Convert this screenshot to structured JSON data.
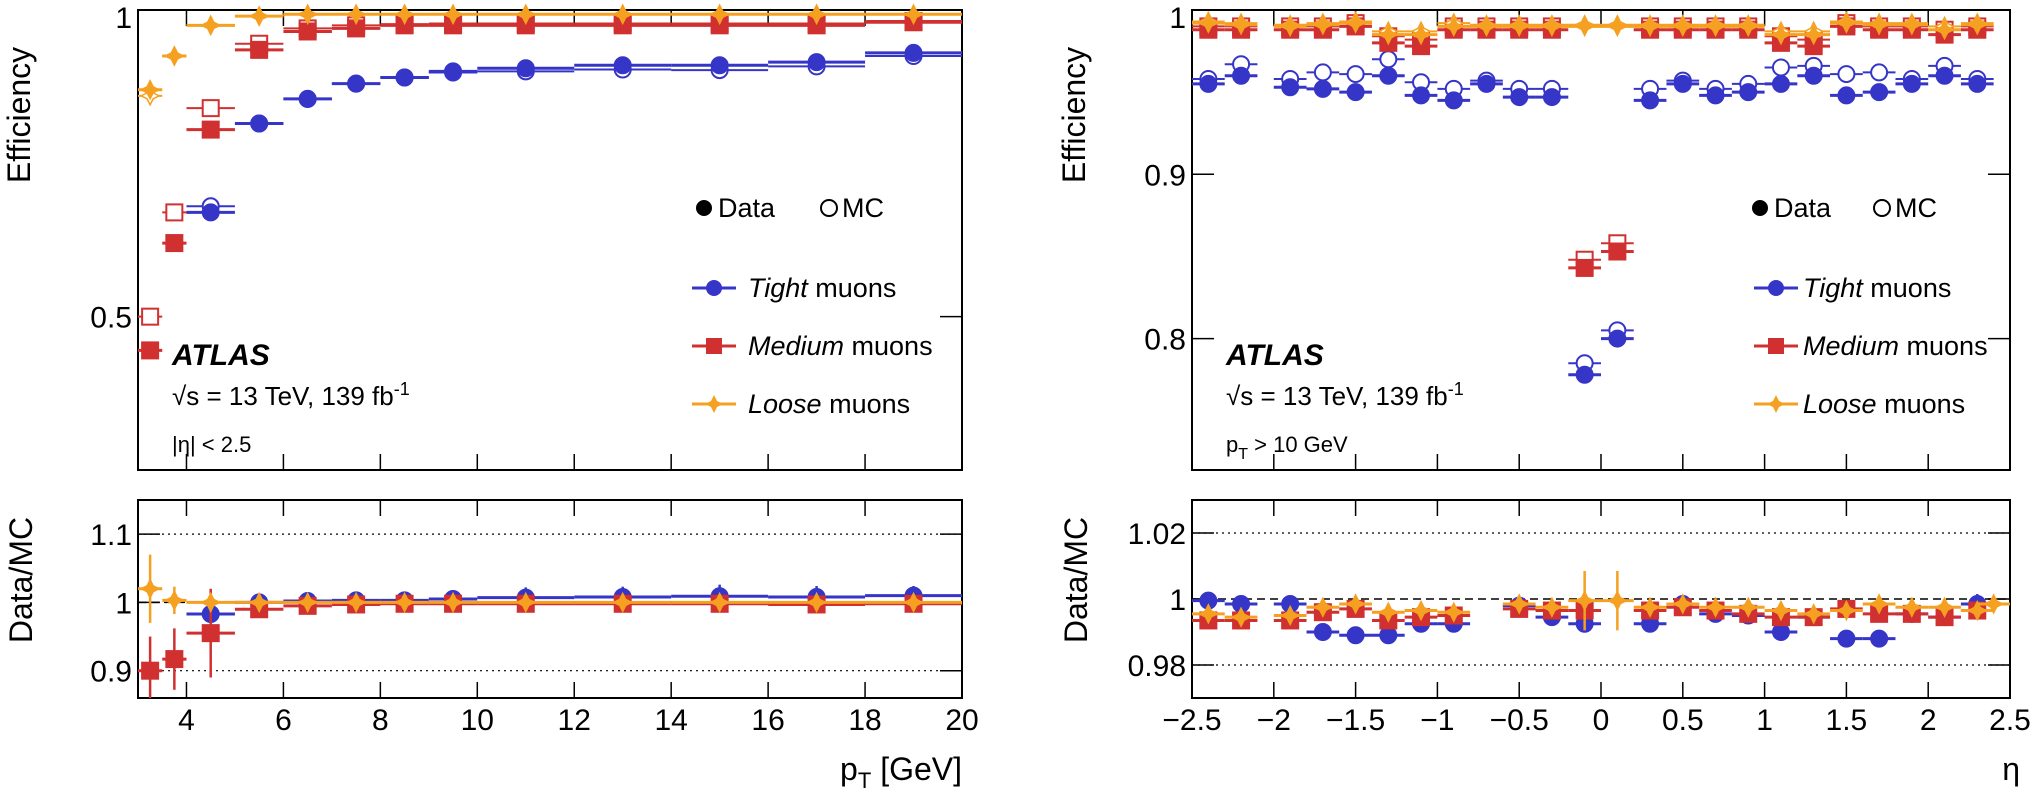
{
  "figure": {
    "experiment": "ATLAS",
    "energy_text": "s = 13 TeV, 139 fb",
    "lumi_sup": "-1",
    "sqrt_symbol": "√"
  },
  "legend": {
    "data_label": "Data",
    "mc_label": "MC",
    "tight_italic": "Tight",
    "medium_italic": "Medium",
    "loose_italic": "Loose",
    "muons_suffix": " muons"
  },
  "colors": {
    "tight": "#3535c8",
    "medium": "#d03030",
    "loose": "#f5a020",
    "data_marker": "#000000"
  },
  "chart_data": [
    {
      "id": "left",
      "type": "scatter",
      "xlabel": "p",
      "xlabel_sub": "T",
      "xlabel_unit": " [GeV]",
      "ylabel": "Efficiency",
      "ratio_ylabel": "Data/MC",
      "cut_label": "|η| < 2.5",
      "xlim": [
        3,
        20
      ],
      "ylim": [
        0.25,
        1.0
      ],
      "ratio_ylim": [
        0.86,
        1.15
      ],
      "xticks": [
        4,
        6,
        8,
        10,
        12,
        14,
        16,
        18,
        20
      ],
      "xtick_labels": [
        "4",
        "6",
        "8",
        "10",
        "12",
        "14",
        "16",
        "18",
        "20"
      ],
      "yticks": [
        0.5,
        1.0
      ],
      "ytick_labels": [
        "0.5",
        "1"
      ],
      "ratio_yticks": [
        0.9,
        1.0,
        1.1
      ],
      "ratio_ytick_labels": [
        "0.9",
        "1",
        "1.1"
      ],
      "ratio_gridlines": [
        0.9,
        1.1
      ],
      "ratio_dashed": 1.0,
      "series": [
        {
          "name": "Tight",
          "x": [
            4.5,
            5.5,
            6.5,
            7.5,
            8.5,
            9.5,
            11,
            13,
            15,
            17,
            19
          ],
          "xerr": [
            0.5,
            0.5,
            0.5,
            0.5,
            0.5,
            0.5,
            1,
            1,
            1,
            1,
            1
          ],
          "data": [
            0.67,
            0.815,
            0.855,
            0.88,
            0.89,
            0.9,
            0.905,
            0.91,
            0.91,
            0.915,
            0.93
          ],
          "mc": [
            0.68,
            0.815,
            0.855,
            0.88,
            0.89,
            0.898,
            0.9,
            0.903,
            0.902,
            0.908,
            0.925
          ],
          "ratio": [
            0.983,
            1.0,
            1.002,
            1.003,
            1.003,
            1.005,
            1.007,
            1.008,
            1.009,
            1.008,
            1.01
          ],
          "ratio_err": [
            0.01,
            0.004,
            0.008,
            0.009,
            0.01,
            0.012,
            0.015,
            0.015,
            0.017,
            0.016,
            0.014
          ]
        },
        {
          "name": "Medium",
          "x": [
            3.25,
            3.75,
            4.5,
            5.5,
            6.5,
            7.5,
            8.5,
            9.5,
            11,
            13,
            15,
            17,
            19
          ],
          "xerr": [
            0.25,
            0.25,
            0.5,
            0.5,
            0.5,
            0.5,
            0.5,
            0.5,
            1,
            1,
            1,
            1,
            1
          ],
          "data": [
            0.445,
            0.62,
            0.805,
            0.935,
            0.965,
            0.97,
            0.975,
            0.975,
            0.975,
            0.975,
            0.975,
            0.975,
            0.98
          ],
          "mc": [
            0.5,
            0.67,
            0.84,
            0.945,
            0.97,
            0.975,
            0.977,
            0.978,
            0.978,
            0.978,
            0.978,
            0.978,
            0.982
          ],
          "ratio": [
            0.9,
            0.917,
            0.955,
            0.99,
            0.995,
            0.997,
            0.998,
            0.998,
            0.998,
            0.998,
            0.998,
            0.997,
            0.998
          ],
          "ratio_err": [
            0.05,
            0.045,
            0.065,
            0.01,
            0.006,
            0.005,
            0.005,
            0.005,
            0.004,
            0.004,
            0.004,
            0.004,
            0.004
          ]
        },
        {
          "name": "Loose",
          "x": [
            3.25,
            3.75,
            4.5,
            5.5,
            6.5,
            7.5,
            8.5,
            9.5,
            11,
            13,
            15,
            17,
            19
          ],
          "xerr": [
            0.25,
            0.25,
            0.5,
            0.5,
            0.5,
            0.5,
            0.5,
            0.5,
            1,
            1,
            1,
            1,
            1
          ],
          "data": [
            0.87,
            0.925,
            0.975,
            0.99,
            0.993,
            0.993,
            0.993,
            0.993,
            0.993,
            0.993,
            0.993,
            0.993,
            0.993
          ],
          "mc": [
            0.86,
            0.925,
            0.975,
            0.99,
            0.993,
            0.993,
            0.993,
            0.993,
            0.993,
            0.993,
            0.993,
            0.993,
            0.993
          ],
          "ratio": [
            1.02,
            1.003,
            1.0,
            1.0,
            1.0,
            1.0,
            1.0,
            1.0,
            1.0,
            1.0,
            1.0,
            1.0,
            1.0
          ],
          "ratio_err": [
            0.05,
            0.02,
            0.01,
            0.004,
            0.003,
            0.003,
            0.003,
            0.003,
            0.003,
            0.003,
            0.003,
            0.003,
            0.003
          ]
        }
      ]
    },
    {
      "id": "right",
      "type": "scatter",
      "xlabel": "η",
      "ylabel": "Efficiency",
      "ratio_ylabel": "Data/MC",
      "cut_label": "p",
      "cut_label_sub": "T",
      "cut_label_rest": " > 10 GeV",
      "xlim": [
        -2.5,
        2.5
      ],
      "ylim": [
        0.72,
        1.0
      ],
      "ratio_ylim": [
        0.97,
        1.03
      ],
      "xticks": [
        -2.5,
        -2,
        -1.5,
        -1,
        -0.5,
        0,
        0.5,
        1,
        1.5,
        2,
        2.5
      ],
      "xtick_labels": [
        "−2.5",
        "−2",
        "−1.5",
        "−1",
        "−0.5",
        "0",
        "0.5",
        "1",
        "1.5",
        "2",
        "2.5"
      ],
      "yticks": [
        0.8,
        0.9,
        1.0
      ],
      "ytick_labels": [
        "0.8",
        "0.9",
        "1"
      ],
      "ratio_yticks": [
        0.98,
        1.0,
        1.02
      ],
      "ratio_ytick_labels": [
        "0.98",
        "1",
        "1.02"
      ],
      "ratio_gridlines": [
        0.98,
        1.02
      ],
      "ratio_dashed": 1.0,
      "series": [
        {
          "name": "Tight",
          "x": [
            -2.4,
            -2.2,
            -1.9,
            -1.7,
            -1.5,
            -1.3,
            -1.1,
            -0.9,
            -0.7,
            -0.5,
            -0.3,
            0.3,
            0.5,
            0.7,
            0.9,
            1.1,
            1.3,
            1.5,
            1.7,
            1.9,
            2.1,
            2.3,
            -0.1,
            0.1
          ],
          "xerr": [
            0.1,
            0.1,
            0.1,
            0.1,
            0.1,
            0.1,
            0.1,
            0.1,
            0.1,
            0.1,
            0.1,
            0.1,
            0.1,
            0.1,
            0.1,
            0.1,
            0.1,
            0.1,
            0.1,
            0.1,
            0.1,
            0.1,
            0.1,
            0.1
          ],
          "data": [
            0.955,
            0.96,
            0.953,
            0.952,
            0.95,
            0.96,
            0.948,
            0.945,
            0.955,
            0.947,
            0.947,
            0.945,
            0.955,
            0.948,
            0.95,
            0.955,
            0.96,
            0.948,
            0.95,
            0.955,
            0.96,
            0.955,
            0.778,
            0.8
          ],
          "mc": [
            0.958,
            0.967,
            0.958,
            0.962,
            0.961,
            0.97,
            0.956,
            0.952,
            0.957,
            0.952,
            0.952,
            0.952,
            0.957,
            0.952,
            0.955,
            0.965,
            0.966,
            0.961,
            0.962,
            0.958,
            0.966,
            0.958,
            0.785,
            0.805
          ],
          "ratio": [
            0.9995,
            0.9985,
            0.9985,
            0.99,
            0.989,
            0.989,
            0.9925,
            0.9925,
            0.998,
            0.9945,
            0.9925,
            0.9925,
            0.9985,
            0.9955,
            0.995,
            0.99,
            0.9945,
            0.988,
            0.988,
            0.9955,
            0.9945,
            0.9985
          ],
          "ratio_x": [
            -2.4,
            -2.2,
            -1.9,
            -1.7,
            -1.5,
            -1.3,
            -1.1,
            -0.9,
            -0.5,
            -0.3,
            -0.1,
            0.3,
            0.5,
            0.7,
            0.9,
            1.1,
            1.3,
            1.5,
            1.7,
            1.9,
            2.1,
            2.3
          ],
          "ratio_err": [
            0.002,
            0.002,
            0.002,
            0.002,
            0.002,
            0.002,
            0.002,
            0.002,
            0.002,
            0.002,
            0.002,
            0.002,
            0.002,
            0.002,
            0.002,
            0.002,
            0.002,
            0.002,
            0.002,
            0.002,
            0.002,
            0.003
          ]
        },
        {
          "name": "Medium",
          "x": [
            -2.4,
            -2.2,
            -1.9,
            -1.7,
            -1.5,
            -1.3,
            -1.1,
            -0.9,
            -0.7,
            -0.5,
            -0.3,
            0.3,
            0.5,
            0.7,
            0.9,
            1.1,
            1.3,
            1.5,
            1.7,
            1.9,
            2.1,
            2.3,
            -0.1,
            0.1
          ],
          "xerr": [
            0.1,
            0.1,
            0.1,
            0.1,
            0.1,
            0.1,
            0.1,
            0.1,
            0.1,
            0.1,
            0.1,
            0.1,
            0.1,
            0.1,
            0.1,
            0.1,
            0.1,
            0.1,
            0.1,
            0.1,
            0.1,
            0.1,
            0.1,
            0.1
          ],
          "data": [
            0.988,
            0.988,
            0.988,
            0.988,
            0.99,
            0.98,
            0.978,
            0.988,
            0.988,
            0.988,
            0.988,
            0.988,
            0.988,
            0.988,
            0.988,
            0.98,
            0.978,
            0.99,
            0.988,
            0.988,
            0.985,
            0.988,
            0.843,
            0.853
          ],
          "mc": [
            0.99,
            0.99,
            0.99,
            0.99,
            0.992,
            0.984,
            0.982,
            0.99,
            0.99,
            0.99,
            0.99,
            0.99,
            0.99,
            0.99,
            0.99,
            0.984,
            0.982,
            0.992,
            0.99,
            0.99,
            0.988,
            0.99,
            0.848,
            0.858
          ],
          "ratio": [
            0.9935,
            0.9935,
            0.9935,
            0.996,
            0.997,
            0.9935,
            0.9945,
            0.995,
            0.997,
            0.9965,
            0.9965,
            0.9965,
            0.9975,
            0.9965,
            0.9955,
            0.9945,
            0.9945,
            0.997,
            0.9955,
            0.9955,
            0.9945,
            0.9965
          ],
          "ratio_x": [
            -2.4,
            -2.2,
            -1.9,
            -1.7,
            -1.5,
            -1.3,
            -1.1,
            -0.9,
            -0.5,
            -0.3,
            -0.1,
            0.3,
            0.5,
            0.7,
            0.9,
            1.1,
            1.3,
            1.5,
            1.7,
            1.9,
            2.1,
            2.3
          ],
          "ratio_err": [
            0.001,
            0.001,
            0.001,
            0.001,
            0.001,
            0.001,
            0.001,
            0.001,
            0.001,
            0.001,
            0.001,
            0.001,
            0.001,
            0.001,
            0.001,
            0.001,
            0.001,
            0.001,
            0.001,
            0.001,
            0.001,
            0.002
          ]
        },
        {
          "name": "Loose",
          "x": [
            -2.4,
            -2.2,
            -1.9,
            -1.7,
            -1.5,
            -1.3,
            -1.1,
            -0.9,
            -0.7,
            -0.5,
            -0.3,
            -0.1,
            0.1,
            0.3,
            0.5,
            0.7,
            0.9,
            1.1,
            1.3,
            1.5,
            1.7,
            1.9,
            2.1,
            2.3
          ],
          "xerr": [
            0.1,
            0.1,
            0.1,
            0.1,
            0.1,
            0.1,
            0.1,
            0.1,
            0.1,
            0.1,
            0.1,
            0.1,
            0.1,
            0.1,
            0.1,
            0.1,
            0.1,
            0.1,
            0.1,
            0.1,
            0.1,
            0.1,
            0.1,
            0.1
          ],
          "data": [
            0.992,
            0.991,
            0.99,
            0.991,
            0.992,
            0.985,
            0.985,
            0.99,
            0.99,
            0.99,
            0.99,
            0.99,
            0.99,
            0.99,
            0.99,
            0.99,
            0.99,
            0.985,
            0.985,
            0.992,
            0.991,
            0.991,
            0.988,
            0.991
          ],
          "mc": [
            0.993,
            0.992,
            0.991,
            0.992,
            0.993,
            0.987,
            0.987,
            0.992,
            0.991,
            0.991,
            0.991,
            0.991,
            0.991,
            0.991,
            0.991,
            0.991,
            0.991,
            0.987,
            0.987,
            0.993,
            0.992,
            0.992,
            0.99,
            0.992
          ],
          "ratio": [
            0.9955,
            0.9945,
            0.995,
            0.9975,
            0.9985,
            0.996,
            0.9965,
            0.996,
            0.9985,
            0.9975,
            0.9995,
            0.9995,
            0.9975,
            0.9985,
            0.9975,
            0.9975,
            0.9965,
            0.9955,
            0.9965,
            0.9985,
            0.9975,
            0.9975,
            0.9965,
            0.9985
          ],
          "ratio_x": [
            -2.4,
            -2.2,
            -1.9,
            -1.7,
            -1.5,
            -1.3,
            -1.1,
            -0.9,
            -0.5,
            -0.3,
            -0.1,
            0.1,
            0.3,
            0.5,
            0.7,
            0.9,
            1.1,
            1.3,
            1.5,
            1.7,
            1.9,
            2.1,
            2.3,
            2.4
          ],
          "ratio_err": [
            0.001,
            0.001,
            0.001,
            0.001,
            0.001,
            0.001,
            0.001,
            0.001,
            0.001,
            0.001,
            0.009,
            0.009,
            0.001,
            0.001,
            0.001,
            0.001,
            0.001,
            0.001,
            0.001,
            0.001,
            0.001,
            0.001,
            0.001,
            0.002
          ]
        }
      ]
    }
  ]
}
